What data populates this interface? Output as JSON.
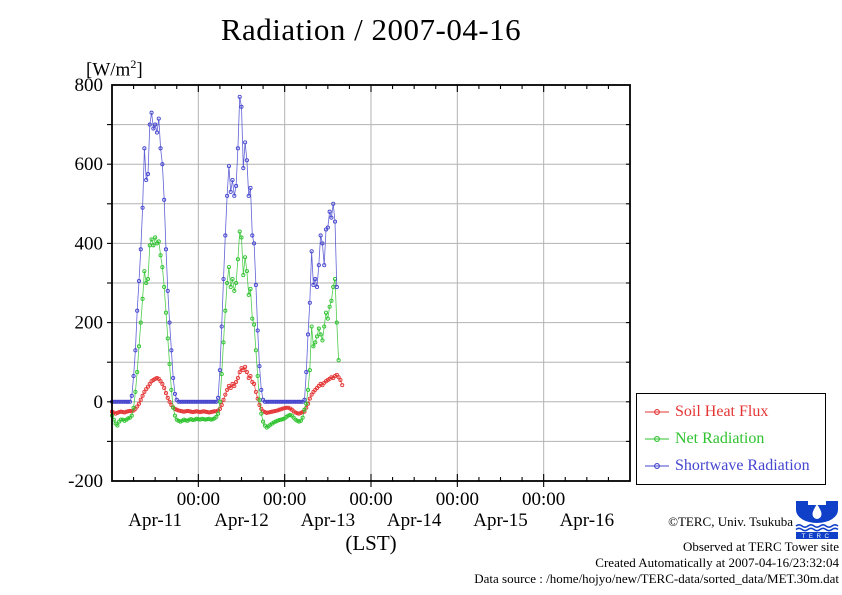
{
  "title": "Radiation / 2007-04-16",
  "y_unit": {
    "prefix": "[W/m",
    "sup": "2",
    "suffix": "]"
  },
  "colors": {
    "grid": "#b3b3b3",
    "axis": "#000000",
    "background": "#ffffff"
  },
  "legend": {
    "items": [
      {
        "label": "Soil Heat Flux",
        "color": "#e43535"
      },
      {
        "label": "Net Radiation",
        "color": "#2fc32f"
      },
      {
        "label": "Shortwave Radiation",
        "color": "#4545cf"
      }
    ]
  },
  "footer": {
    "copyright": "©TERC, Univ. Tsukuba",
    "observed": "Observed at TERC Tower site",
    "created": "Created Automatically at 2007-04-16/23:32:04",
    "datasource": "Data source : /home/hojyo/new/TERC-data/sorted_data/MET.30m.dat"
  },
  "logo": {
    "text": "TERC",
    "color": "#1040c8"
  },
  "chart_data": {
    "type": "line",
    "title": "Radiation / 2007-04-16",
    "ylabel": "[W/m2]",
    "xlabel": "(LST)",
    "ylim": [
      -200,
      800
    ],
    "y_grid_step": 100,
    "y_label_step": 200,
    "y_tick_labels": [
      "-200",
      "0",
      "200",
      "400",
      "600",
      "800"
    ],
    "x_range_hours": [
      0,
      144
    ],
    "x_start": "2007-04-11 00:00 LST",
    "x_end": "2007-04-17 00:00 LST",
    "x_minor_tick_hours": 6,
    "x_major_tick_hours": 24,
    "x_major_labels": [
      "00:00",
      "00:00",
      "00:00",
      "00:00",
      "00:00"
    ],
    "day_labels": [
      "Apr-11",
      "Apr-12",
      "Apr-13",
      "Apr-14",
      "Apr-15",
      "Apr-16"
    ],
    "grid": true,
    "legend_position": "outside-right-bottom",
    "sampling_interval_hours": 0.5,
    "note": "values in W/m2 at 30-min intervals starting 2007-04-11 00:00 LST; data ends early on Apr-13 afternoon",
    "series": [
      {
        "name": "Soil Heat Flux",
        "color": "#e43535",
        "t0_hours": 0,
        "values": [
          -25,
          -27,
          -30,
          -28,
          -26,
          -25,
          -26,
          -27,
          -25,
          -24,
          -23,
          -24,
          -22,
          -18,
          -12,
          -5,
          5,
          15,
          25,
          32,
          38,
          45,
          52,
          55,
          58,
          60,
          58,
          52,
          45,
          35,
          22,
          10,
          0,
          -8,
          -14,
          -18,
          -20,
          -22,
          -23,
          -24,
          -25,
          -24,
          -23,
          -24,
          -25,
          -26,
          -25,
          -24,
          -25,
          -26,
          -25,
          -24,
          -25,
          -26,
          -27,
          -26,
          -25,
          -24,
          -24,
          -22,
          -18,
          -8,
          5,
          18,
          30,
          40,
          35,
          45,
          40,
          50,
          60,
          75,
          85,
          80,
          88,
          75,
          60,
          65,
          50,
          45,
          25,
          8,
          -8,
          -18,
          -24,
          -26,
          -28,
          -27,
          -26,
          -25,
          -24,
          -23,
          -22,
          -20,
          -19,
          -17,
          -16,
          -15,
          -15,
          -17,
          -20,
          -24,
          -27,
          -29,
          -30,
          -28,
          -26,
          -25,
          -15,
          -5,
          8,
          18,
          25,
          30,
          35,
          40,
          45,
          42,
          48,
          52,
          55,
          58,
          62,
          60,
          65,
          68,
          62,
          55,
          42
        ]
      },
      {
        "name": "Net Radiation",
        "color": "#2fc32f",
        "t0_hours": 0,
        "values": [
          -35,
          -45,
          -55,
          -60,
          -50,
          -45,
          -45,
          -48,
          -45,
          -42,
          -40,
          -35,
          -15,
          25,
          75,
          140,
          200,
          260,
          330,
          300,
          310,
          395,
          410,
          395,
          415,
          400,
          405,
          370,
          340,
          290,
          225,
          160,
          95,
          30,
          -15,
          -35,
          -45,
          -48,
          -50,
          -48,
          -45,
          -47,
          -48,
          -45,
          -44,
          -46,
          -45,
          -43,
          -44,
          -45,
          -43,
          -44,
          -45,
          -44,
          -43,
          -45,
          -44,
          -42,
          -38,
          -30,
          0,
          70,
          150,
          230,
          300,
          340,
          290,
          310,
          280,
          300,
          360,
          430,
          415,
          320,
          365,
          330,
          270,
          285,
          210,
          195,
          130,
          65,
          5,
          -30,
          -50,
          -60,
          -65,
          -62,
          -58,
          -55,
          -52,
          -50,
          -48,
          -46,
          -45,
          -44,
          -42,
          -38,
          -35,
          -33,
          -35,
          -40,
          -45,
          -48,
          -50,
          -48,
          -40,
          -20,
          -5,
          30,
          80,
          190,
          140,
          150,
          165,
          185,
          170,
          155,
          190,
          225,
          210,
          240,
          255,
          290,
          310,
          200,
          105
        ]
      },
      {
        "name": "Shortwave Radiation",
        "color": "#4545cf",
        "t0_hours": 0,
        "values": [
          0,
          0,
          0,
          0,
          0,
          0,
          0,
          0,
          0,
          0,
          0,
          15,
          65,
          130,
          230,
          305,
          385,
          490,
          640,
          560,
          575,
          700,
          730,
          690,
          700,
          680,
          715,
          640,
          600,
          510,
          385,
          280,
          200,
          130,
          60,
          20,
          5,
          0,
          0,
          0,
          0,
          0,
          0,
          0,
          0,
          0,
          0,
          0,
          0,
          0,
          0,
          0,
          0,
          0,
          0,
          0,
          0,
          0,
          0,
          10,
          80,
          190,
          310,
          420,
          520,
          595,
          530,
          560,
          520,
          545,
          640,
          770,
          745,
          590,
          655,
          610,
          520,
          540,
          420,
          400,
          295,
          180,
          90,
          30,
          5,
          0,
          0,
          0,
          0,
          0,
          0,
          0,
          0,
          0,
          0,
          0,
          0,
          0,
          0,
          0,
          0,
          0,
          0,
          0,
          0,
          0,
          0,
          5,
          75,
          170,
          250,
          380,
          295,
          310,
          290,
          345,
          420,
          400,
          345,
          435,
          440,
          480,
          465,
          500,
          455,
          290
        ]
      }
    ]
  }
}
